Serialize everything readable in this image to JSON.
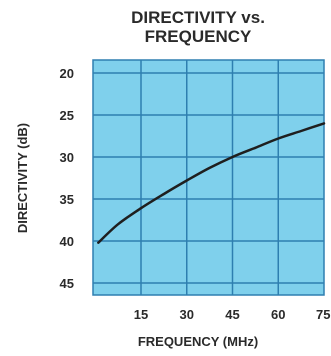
{
  "chart_data": {
    "type": "line",
    "title_lines": [
      "DIRECTIVITY vs.",
      "FREQUENCY"
    ],
    "xlabel": "FREQUENCY (MHz)",
    "ylabel": "DIRECTIVITY (dB)",
    "xlim": [
      0,
      75
    ],
    "ylim": [
      20,
      45
    ],
    "y_inverted": true,
    "x_ticks": [
      15,
      30,
      45,
      60,
      75
    ],
    "x_tick_labels": [
      "15",
      "30",
      "45",
      "60",
      "75"
    ],
    "y_ticks": [
      20,
      25,
      30,
      35,
      40,
      45
    ],
    "y_tick_labels": [
      "20",
      "25",
      "30",
      "35",
      "40",
      "45"
    ],
    "grid": true,
    "colors": {
      "plot_background": "#7fd0ec",
      "grid": "#2e7fb0",
      "line": "#1f1f1f"
    },
    "series": [
      {
        "x": [
          1,
          7.5,
          15,
          22.5,
          30,
          37.5,
          45,
          52.5,
          60,
          67.5,
          75
        ],
        "y": [
          40.2,
          38.0,
          36.1,
          34.4,
          32.8,
          31.3,
          30.0,
          28.9,
          27.8,
          26.9,
          26.0
        ]
      }
    ]
  }
}
